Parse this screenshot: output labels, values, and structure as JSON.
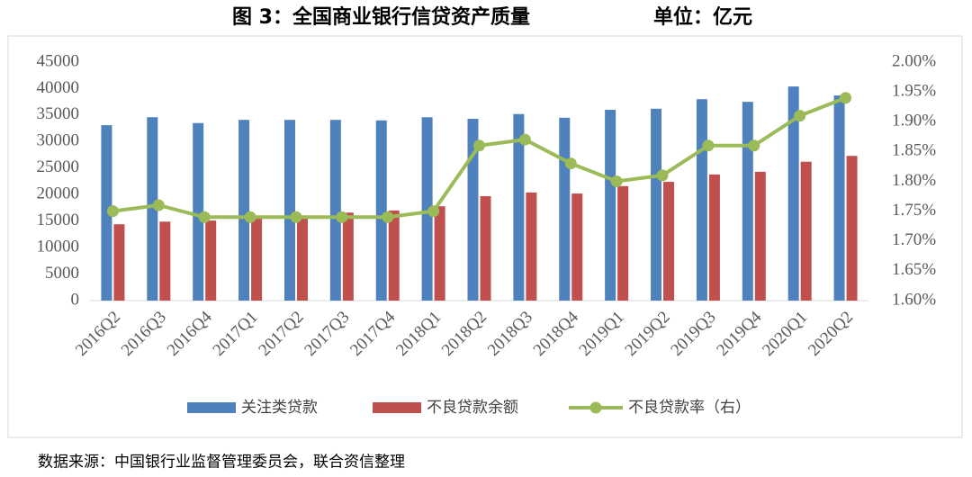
{
  "chart_data": {
    "type": "bar_line",
    "title": "图 3：全国商业银行信贷资产质量",
    "subtitle": "单位：亿元",
    "source": "数据来源：中国银行业监督管理委员会，联合资信整理",
    "categories": [
      "2016Q2",
      "2016Q3",
      "2016Q4",
      "2017Q1",
      "2017Q2",
      "2017Q3",
      "2017Q4",
      "2018Q1",
      "2018Q2",
      "2018Q3",
      "2018Q4",
      "2019Q1",
      "2019Q2",
      "2019Q3",
      "2019Q4",
      "2020Q1",
      "2020Q2"
    ],
    "series": [
      {
        "name": "关注类贷款",
        "type": "bar",
        "color": "#4f81bd",
        "values": [
          33100,
          34600,
          33500,
          34100,
          34100,
          34100,
          34000,
          34600,
          34300,
          35200,
          34500,
          36000,
          36200,
          38000,
          37500,
          40400,
          38700
        ]
      },
      {
        "name": "不良贷款余额",
        "type": "bar",
        "color": "#c0504d",
        "values": [
          14400,
          14900,
          15100,
          15500,
          15800,
          16600,
          17000,
          17800,
          19700,
          20400,
          20200,
          21600,
          22400,
          23800,
          24300,
          26200,
          27300
        ]
      },
      {
        "name": "不良贷款率（右）",
        "type": "line",
        "axis": "y2",
        "color": "#9bbb59",
        "values": [
          1.75,
          1.76,
          1.74,
          1.74,
          1.74,
          1.74,
          1.74,
          1.75,
          1.86,
          1.87,
          1.83,
          1.8,
          1.81,
          1.86,
          1.86,
          1.91,
          1.94
        ]
      }
    ],
    "ylim": [
      0,
      45000
    ],
    "yticks": [
      0,
      5000,
      10000,
      15000,
      20000,
      25000,
      30000,
      35000,
      40000,
      45000
    ],
    "y2lim": [
      1.6,
      2.0
    ],
    "y2ticks": [
      {
        "value": 1.6,
        "label": "1.60%"
      },
      {
        "value": 1.65,
        "label": "1.65%"
      },
      {
        "value": 1.7,
        "label": "1.70%"
      },
      {
        "value": 1.75,
        "label": "1.75%"
      },
      {
        "value": 1.8,
        "label": "1.80%"
      },
      {
        "value": 1.85,
        "label": "1.85%"
      },
      {
        "value": 1.9,
        "label": "1.90%"
      },
      {
        "value": 1.95,
        "label": "1.95%"
      },
      {
        "value": 2.0,
        "label": "2.00%"
      }
    ],
    "legend": "bottom"
  }
}
